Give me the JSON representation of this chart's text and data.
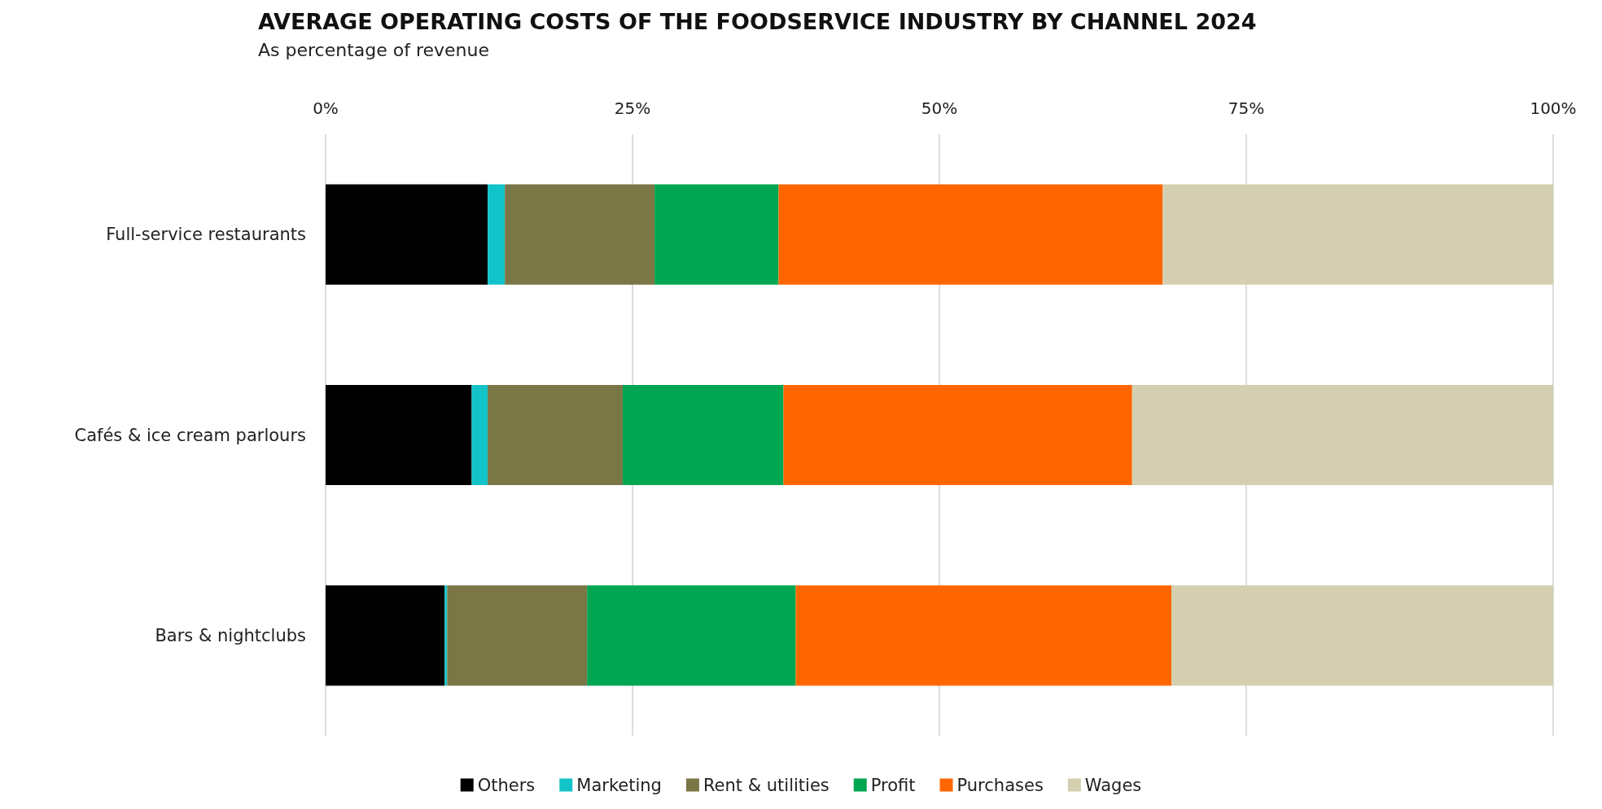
{
  "chart_data": {
    "type": "bar",
    "orientation": "horizontal",
    "stacked": true,
    "title": "AVERAGE OPERATING COSTS OF THE FOODSERVICE INDUSTRY BY CHANNEL 2024",
    "subtitle": "As percentage of revenue",
    "categories": [
      "Full-service restaurants",
      "Cafés & ice cream parlours",
      "Bars & nightclubs"
    ],
    "series": [
      {
        "name": "Others",
        "color": "#000000",
        "values": [
          13.2,
          11.9,
          9.7
        ]
      },
      {
        "name": "Marketing",
        "color": "#12c4c9",
        "values": [
          1.4,
          1.3,
          0.2
        ]
      },
      {
        "name": "Rent & utilities",
        "color": "#7b7645",
        "values": [
          12.2,
          11.0,
          11.4
        ]
      },
      {
        "name": "Profit",
        "color": "#00a651",
        "values": [
          10.1,
          13.1,
          17.0
        ]
      },
      {
        "name": "Purchases",
        "color": "#ff6600",
        "values": [
          31.3,
          28.4,
          30.6
        ]
      },
      {
        "name": "Wages",
        "color": "#d4cfb0",
        "values": [
          31.8,
          34.3,
          31.2
        ]
      }
    ],
    "xlim": [
      0,
      100
    ],
    "xticks": [
      {
        "value": 0,
        "label": "0%"
      },
      {
        "value": 25,
        "label": "25%"
      },
      {
        "value": 50,
        "label": "50%"
      },
      {
        "value": 75,
        "label": "75%"
      },
      {
        "value": 100,
        "label": "100%"
      }
    ],
    "grid": "x",
    "legend": "bottom"
  }
}
